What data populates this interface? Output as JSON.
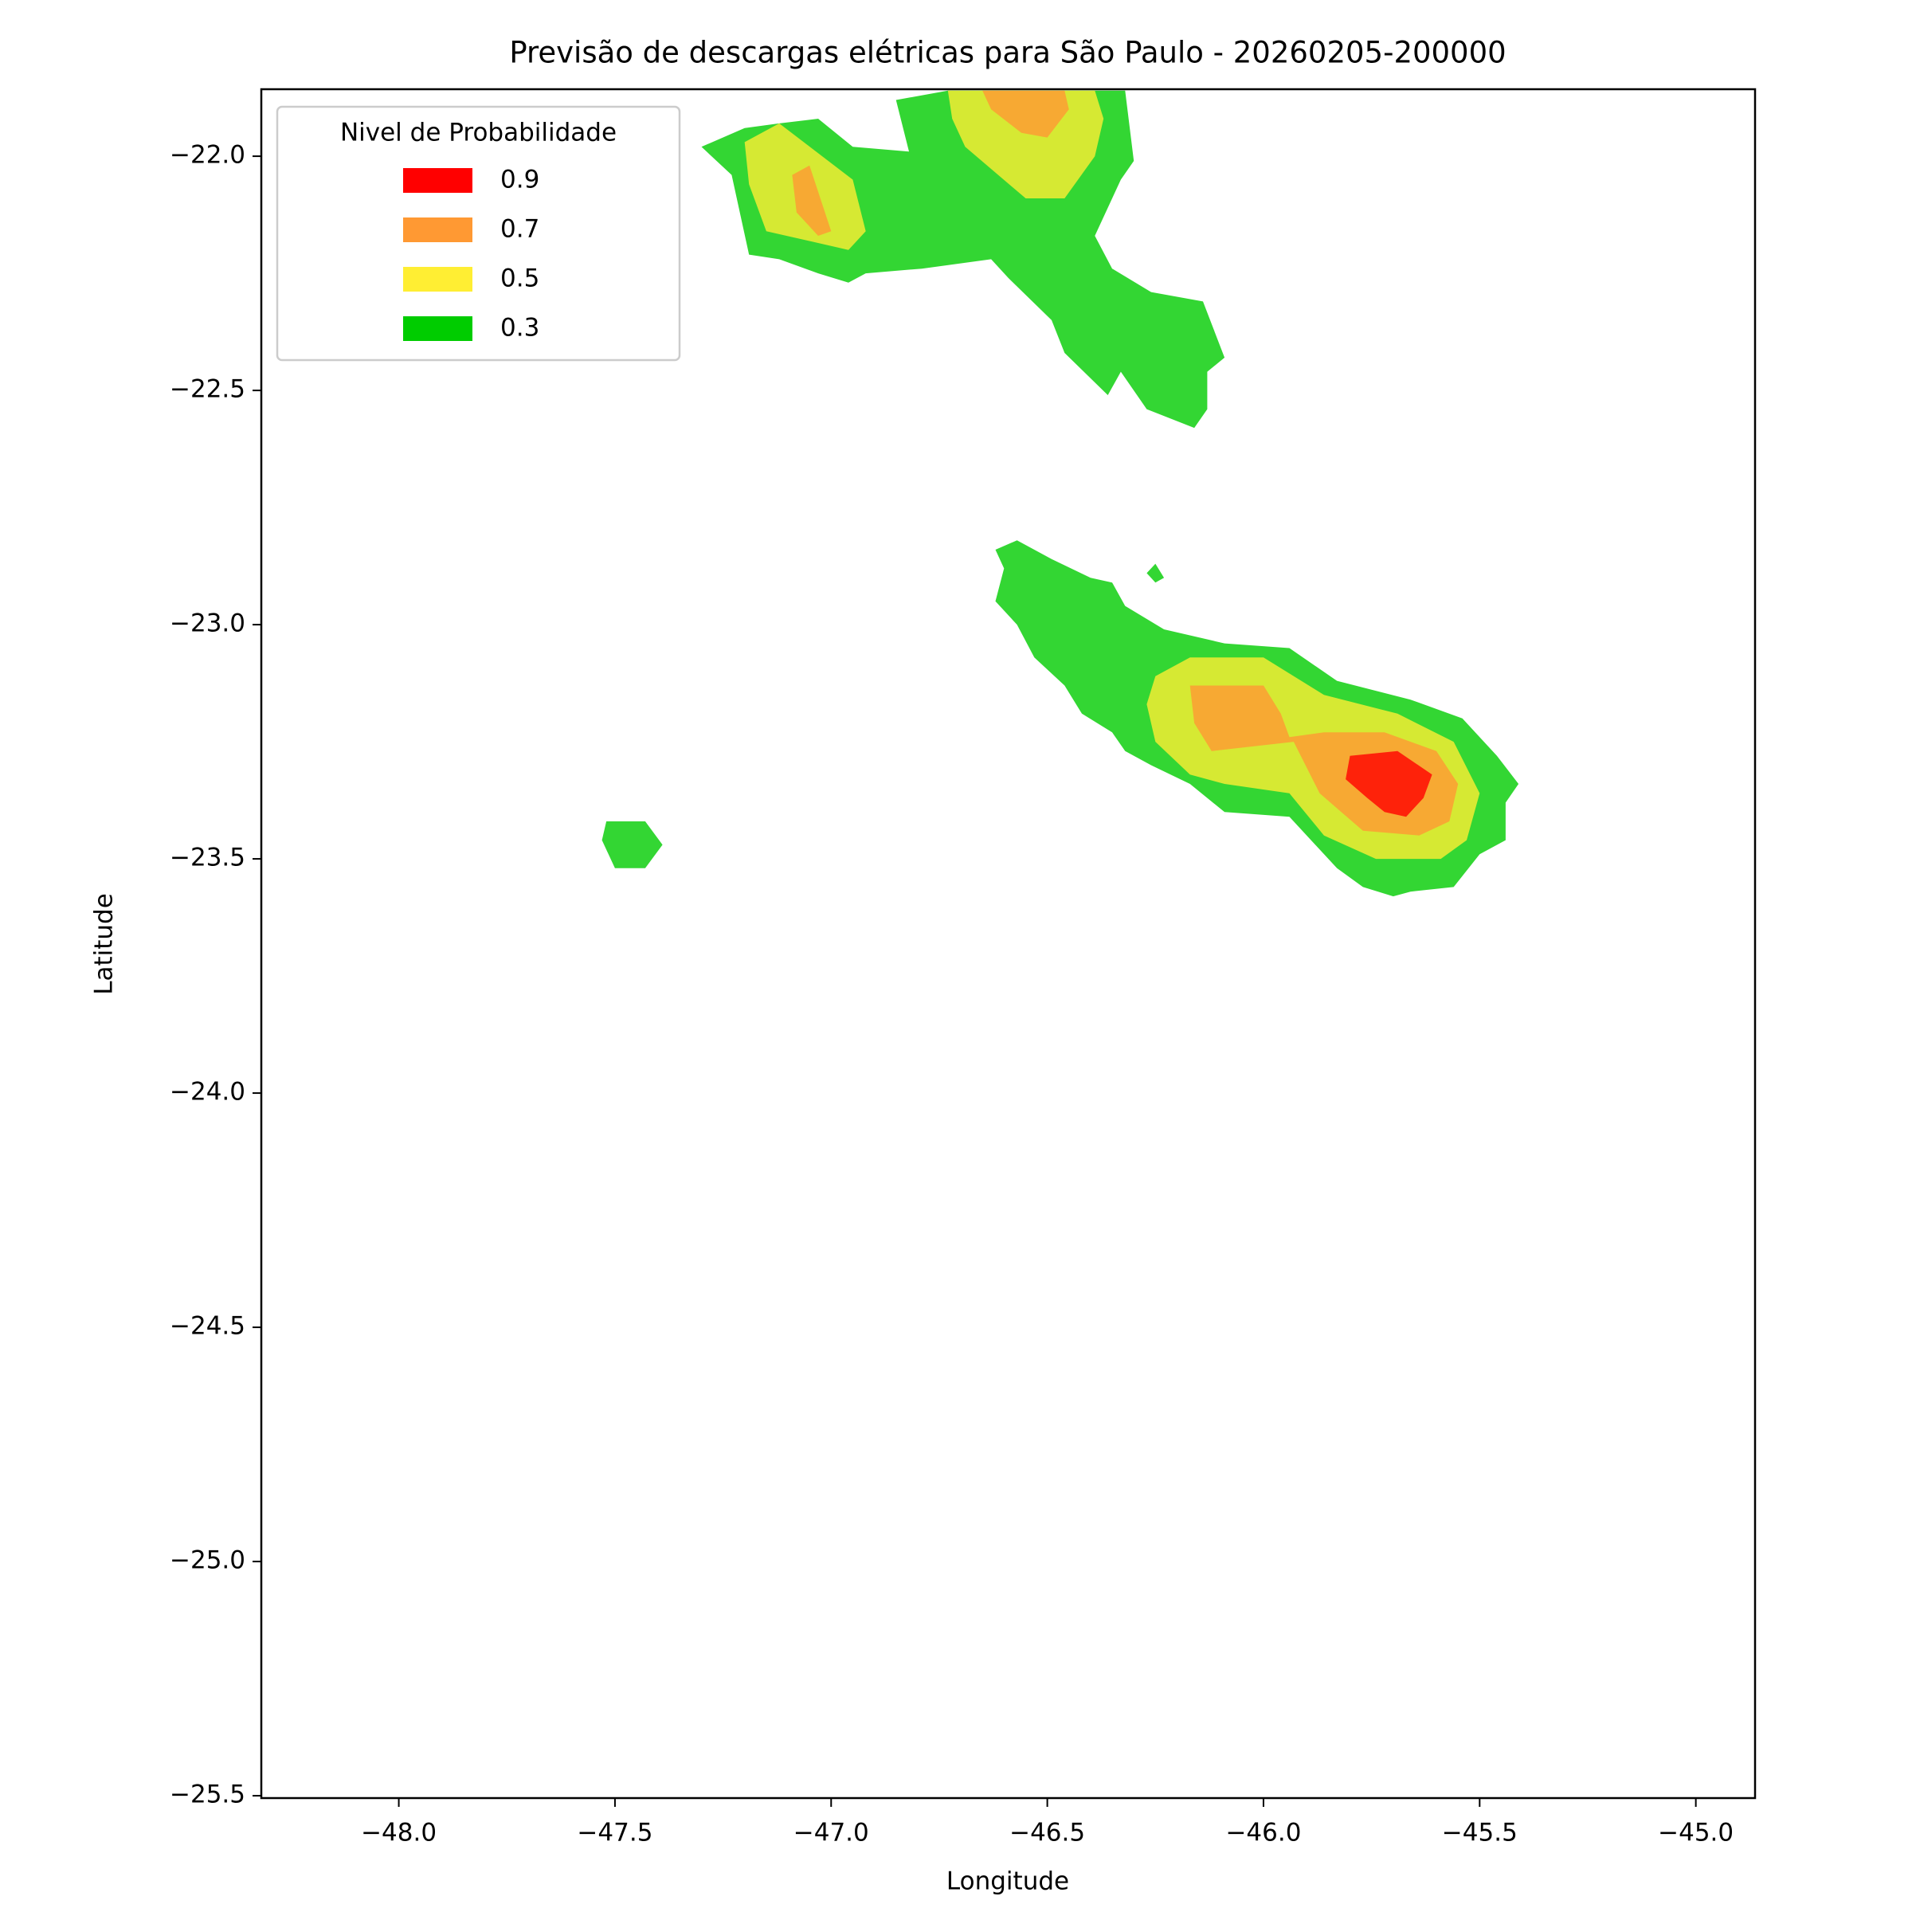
{
  "chart_data": {
    "type": "contourf",
    "title": "Previsão de descargas elétricas para São Paulo - 20260205-200000",
    "xlabel": "Longitude",
    "ylabel": "Latitude",
    "xlim": [
      -48.318,
      -44.863
    ],
    "ylim": [
      -25.505,
      -21.857
    ],
    "xticks": [
      {
        "value": -48,
        "label": "−48.0"
      },
      {
        "value": -47.5,
        "label": "−47.5"
      },
      {
        "value": -47,
        "label": "−47.0"
      },
      {
        "value": -46.5,
        "label": "−46.5"
      },
      {
        "value": -46,
        "label": "−46.0"
      },
      {
        "value": -45.5,
        "label": "−45.5"
      },
      {
        "value": -45,
        "label": "−45.0"
      }
    ],
    "yticks": [
      {
        "value": -22,
        "label": "−22.0"
      },
      {
        "value": -22.5,
        "label": "−22.5"
      },
      {
        "value": -23,
        "label": "−23.0"
      },
      {
        "value": -23.5,
        "label": "−23.5"
      },
      {
        "value": -24,
        "label": "−24.0"
      },
      {
        "value": -24.5,
        "label": "−24.5"
      },
      {
        "value": -25,
        "label": "−25.0"
      },
      {
        "value": -25.5,
        "label": "−25.5"
      }
    ],
    "alpha": 0.8,
    "legend": {
      "title": "Nivel de Probabilidade",
      "loc": "upper left"
    },
    "levels": [
      {
        "value": 0.9,
        "color": "#ff0000",
        "regions": [
          [
            [
              -45.8,
              -23.28
            ],
            [
              -45.69,
              -23.27
            ],
            [
              -45.61,
              -23.32
            ],
            [
              -45.63,
              -23.37
            ],
            [
              -45.67,
              -23.41
            ],
            [
              -45.72,
              -23.4
            ],
            [
              -45.76,
              -23.37
            ],
            [
              -45.81,
              -23.33
            ]
          ]
        ]
      },
      {
        "value": 0.7,
        "color": "#ff9933",
        "regions": [
          [
            [
              -47.09,
              -22.04
            ],
            [
              -47.05,
              -22.02
            ],
            [
              -47.0,
              -22.16
            ],
            [
              -47.03,
              -22.17
            ],
            [
              -47.08,
              -22.12
            ]
          ],
          [
            [
              -46.65,
              -21.86
            ],
            [
              -46.46,
              -21.86
            ],
            [
              -46.45,
              -21.9
            ],
            [
              -46.5,
              -21.96
            ],
            [
              -46.56,
              -21.95
            ],
            [
              -46.63,
              -21.9
            ]
          ],
          [
            [
              -46.17,
              -23.13
            ],
            [
              -46.0,
              -23.13
            ],
            [
              -45.96,
              -23.19
            ],
            [
              -45.94,
              -23.24
            ],
            [
              -45.86,
              -23.23
            ],
            [
              -45.72,
              -23.23
            ],
            [
              -45.6,
              -23.27
            ],
            [
              -45.55,
              -23.34
            ],
            [
              -45.57,
              -23.42
            ],
            [
              -45.64,
              -23.45
            ],
            [
              -45.77,
              -23.44
            ],
            [
              -45.87,
              -23.36
            ],
            [
              -45.93,
              -23.25
            ],
            [
              -46.12,
              -23.27
            ],
            [
              -46.16,
              -23.21
            ]
          ]
        ]
      },
      {
        "value": 0.5,
        "color": "#ffee33",
        "regions": [
          [
            [
              -47.2,
              -21.97
            ],
            [
              -47.12,
              -21.93
            ],
            [
              -46.95,
              -22.05
            ],
            [
              -46.92,
              -22.16
            ],
            [
              -46.96,
              -22.2
            ],
            [
              -47.15,
              -22.16
            ],
            [
              -47.19,
              -22.06
            ]
          ],
          [
            [
              -46.73,
              -21.86
            ],
            [
              -46.39,
              -21.86
            ],
            [
              -46.37,
              -21.92
            ],
            [
              -46.39,
              -22.0
            ],
            [
              -46.46,
              -22.09
            ],
            [
              -46.55,
              -22.09
            ],
            [
              -46.69,
              -21.98
            ],
            [
              -46.72,
              -21.92
            ]
          ],
          [
            [
              -46.25,
              -23.11
            ],
            [
              -46.17,
              -23.07
            ],
            [
              -46.0,
              -23.07
            ],
            [
              -45.86,
              -23.15
            ],
            [
              -45.69,
              -23.19
            ],
            [
              -45.56,
              -23.25
            ],
            [
              -45.5,
              -23.36
            ],
            [
              -45.53,
              -23.46
            ],
            [
              -45.59,
              -23.5
            ],
            [
              -45.74,
              -23.5
            ],
            [
              -45.86,
              -23.45
            ],
            [
              -45.94,
              -23.36
            ],
            [
              -46.09,
              -23.34
            ],
            [
              -46.17,
              -23.32
            ],
            [
              -46.25,
              -23.25
            ],
            [
              -46.27,
              -23.17
            ]
          ]
        ]
      },
      {
        "value": 0.3,
        "color": "#00cc00",
        "regions": [
          [
            [
              -47.3,
              -21.98
            ],
            [
              -47.2,
              -21.94
            ],
            [
              -47.12,
              -21.93
            ],
            [
              -47.03,
              -21.92
            ],
            [
              -46.95,
              -21.98
            ],
            [
              -46.82,
              -21.99
            ],
            [
              -46.85,
              -21.88
            ],
            [
              -46.73,
              -21.86
            ],
            [
              -46.32,
              -21.86
            ],
            [
              -46.3,
              -22.01
            ],
            [
              -46.33,
              -22.05
            ],
            [
              -46.39,
              -22.17
            ],
            [
              -46.35,
              -22.24
            ],
            [
              -46.26,
              -22.29
            ],
            [
              -46.14,
              -22.31
            ],
            [
              -46.09,
              -22.43
            ],
            [
              -46.13,
              -22.46
            ],
            [
              -46.13,
              -22.54
            ],
            [
              -46.16,
              -22.58
            ],
            [
              -46.27,
              -22.54
            ],
            [
              -46.33,
              -22.46
            ],
            [
              -46.36,
              -22.51
            ],
            [
              -46.46,
              -22.42
            ],
            [
              -46.49,
              -22.35
            ],
            [
              -46.59,
              -22.26
            ],
            [
              -46.63,
              -22.22
            ],
            [
              -46.79,
              -22.24
            ],
            [
              -46.92,
              -22.25
            ],
            [
              -46.96,
              -22.27
            ],
            [
              -47.03,
              -22.25
            ],
            [
              -47.12,
              -22.22
            ],
            [
              -47.19,
              -22.21
            ],
            [
              -47.23,
              -22.04
            ]
          ],
          [
            [
              -46.62,
              -22.84
            ],
            [
              -46.57,
              -22.82
            ],
            [
              -46.49,
              -22.86
            ],
            [
              -46.4,
              -22.9
            ],
            [
              -46.35,
              -22.91
            ],
            [
              -46.32,
              -22.96
            ],
            [
              -46.23,
              -23.01
            ],
            [
              -46.09,
              -23.04
            ],
            [
              -45.94,
              -23.05
            ],
            [
              -45.83,
              -23.12
            ],
            [
              -45.66,
              -23.16
            ],
            [
              -45.54,
              -23.2
            ],
            [
              -45.46,
              -23.28
            ],
            [
              -45.41,
              -23.34
            ],
            [
              -45.44,
              -23.38
            ],
            [
              -45.44,
              -23.46
            ],
            [
              -45.5,
              -23.49
            ],
            [
              -45.56,
              -23.56
            ],
            [
              -45.66,
              -23.57
            ],
            [
              -45.7,
              -23.58
            ],
            [
              -45.77,
              -23.56
            ],
            [
              -45.83,
              -23.52
            ],
            [
              -45.94,
              -23.41
            ],
            [
              -46.09,
              -23.4
            ],
            [
              -46.17,
              -23.34
            ],
            [
              -46.26,
              -23.3
            ],
            [
              -46.32,
              -23.27
            ],
            [
              -46.35,
              -23.23
            ],
            [
              -46.42,
              -23.19
            ],
            [
              -46.46,
              -23.13
            ],
            [
              -46.53,
              -23.07
            ],
            [
              -46.57,
              -23.0
            ],
            [
              -46.62,
              -22.95
            ],
            [
              -46.6,
              -22.88
            ]
          ],
          [
            [
              -47.52,
              -23.42
            ],
            [
              -47.43,
              -23.42
            ],
            [
              -47.39,
              -23.47
            ],
            [
              -47.43,
              -23.52
            ],
            [
              -47.5,
              -23.52
            ],
            [
              -47.53,
              -23.46
            ]
          ],
          [
            [
              -46.27,
              -22.89
            ],
            [
              -46.25,
              -22.87
            ],
            [
              -46.23,
              -22.9
            ],
            [
              -46.25,
              -22.91
            ]
          ]
        ]
      }
    ]
  }
}
